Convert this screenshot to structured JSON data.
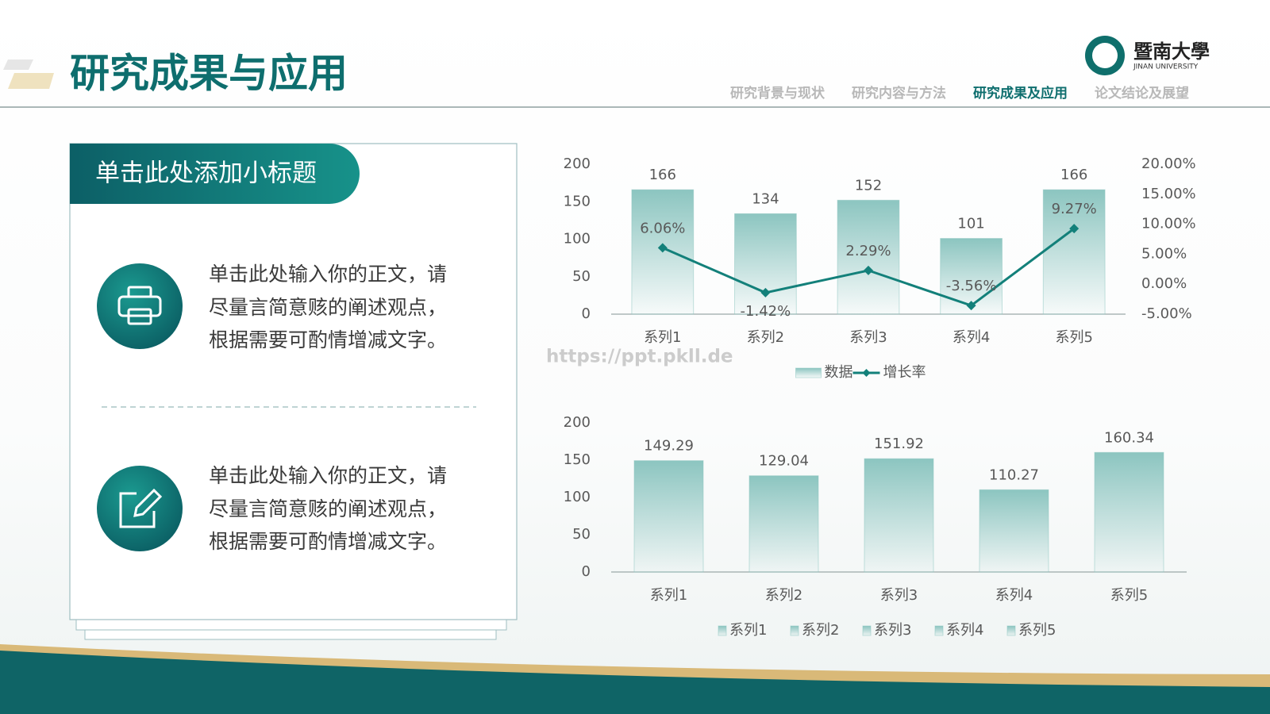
{
  "header": {
    "title": "研究成果与应用",
    "nav": [
      "研究背景与现状",
      "研究内容与方法",
      "研究成果及应用",
      "论文结论及展望"
    ]
  },
  "logo": {
    "name": "暨南大學",
    "english": "JINAN UNIVERSITY"
  },
  "panel": {
    "subtitle": "单击此处添加小标题",
    "items": [
      {
        "lines": [
          "单击此处输入你的正文，请",
          "尽量言简意赅的阐述观点，",
          "根据需要可酌情增减文字。"
        ]
      },
      {
        "lines": [
          "单击此处输入你的正文，请",
          "尽量言简意赅的阐述观点，",
          "根据需要可酌情增减文字。"
        ]
      }
    ]
  },
  "watermark": "https://ppt.pkll.de",
  "chart_data": [
    {
      "type": "bar",
      "categories": [
        "系列1",
        "系列2",
        "系列3",
        "系列4",
        "系列5"
      ],
      "series": [
        {
          "name": "数据",
          "color": "#8cc5c0",
          "values": [
            166,
            134,
            152,
            101,
            166
          ]
        },
        {
          "name": "增长率",
          "color": "#13807a",
          "axis": "y2",
          "values": [
            6.06,
            -1.42,
            2.29,
            -3.56,
            9.27
          ],
          "value_labels": [
            "6.06%",
            "-1.42%",
            "2.29%",
            "-3.56%",
            "9.27%"
          ]
        }
      ],
      "ylim": [
        0,
        200
      ],
      "yticks": [
        0,
        50,
        100,
        150,
        200
      ],
      "y2lim": [
        -5,
        20
      ],
      "y2ticks": [
        {
          "value": -5,
          "label": "-5.00%"
        },
        {
          "value": 0,
          "label": "0.00%"
        },
        {
          "value": 5,
          "label": "5.00%"
        },
        {
          "value": 10,
          "label": "10.00%"
        },
        {
          "value": 15,
          "label": "15.00%"
        },
        {
          "value": 20,
          "label": "20.00%"
        }
      ]
    },
    {
      "type": "bar",
      "categories": [
        "系列1",
        "系列2",
        "系列3",
        "系列4",
        "系列5"
      ],
      "series": [
        {
          "name": "系列1",
          "color": "#8cc5c0",
          "values": [
            149.29,
            null,
            null,
            null,
            null
          ]
        },
        {
          "name": "系列2",
          "color": "#8cc5c0",
          "values": [
            null,
            129.04,
            null,
            null,
            null
          ]
        },
        {
          "name": "系列3",
          "color": "#8cc5c0",
          "values": [
            null,
            null,
            151.92,
            null,
            null
          ]
        },
        {
          "name": "系列4",
          "color": "#8cc5c0",
          "values": [
            null,
            null,
            null,
            110.27,
            null
          ]
        },
        {
          "name": "系列5",
          "color": "#8cc5c0",
          "values": [
            null,
            null,
            null,
            null,
            160.34
          ]
        }
      ],
      "ylim": [
        0,
        200
      ],
      "yticks": [
        0,
        50,
        100,
        150,
        200
      ]
    }
  ]
}
